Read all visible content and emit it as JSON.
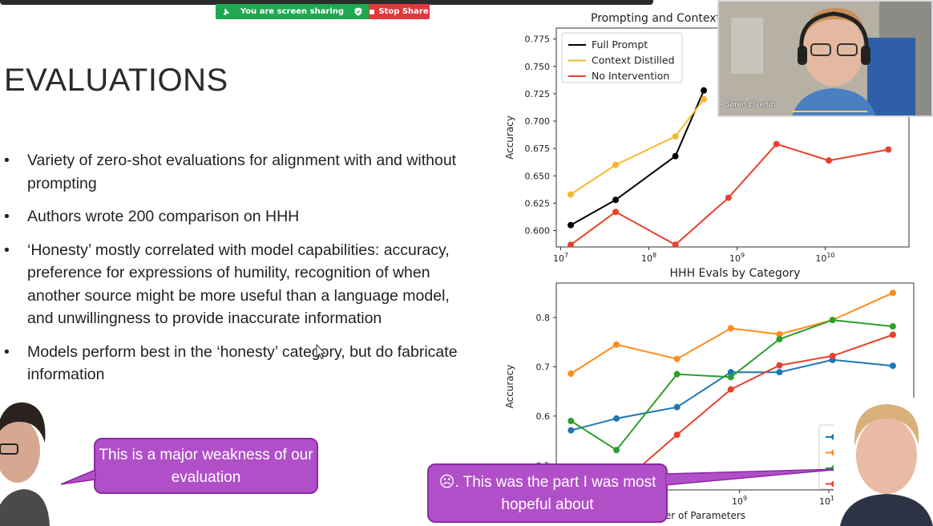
{
  "share_toolbar": {
    "status": "You are screen sharing",
    "stop_label": "Stop Share",
    "status_color": "#1fa84f",
    "stop_color": "#e0383e"
  },
  "slide": {
    "title": "EVALUATIONS",
    "bullets": [
      "Variety of zero-shot evaluations for alignment with and without prompting",
      "Authors wrote 200 comparison on HHH",
      "‘Honesty’ mostly correlated with model capabilities: accuracy, preference for expressions of humility, recognition of when another source might be more useful than a language model, and unwillingness to provide inaccurate information",
      "Models perform best in the ‘honesty’ category, but do fabricate information"
    ]
  },
  "webcam": {
    "name": "Søren Elverlin"
  },
  "speech": {
    "left": "This is a major weakness of our evaluation",
    "right": "☹. This was the part I was most hopeful about"
  },
  "chart_data": [
    {
      "type": "line",
      "title": "Prompting and Context",
      "xlabel": "",
      "ylabel": "Accuracy",
      "x_scale": "log",
      "x_ticks": [
        "10^7",
        "10^8",
        "10^9",
        "10^10"
      ],
      "ylim": [
        0.585,
        0.785
      ],
      "y_ticks": [
        "0.600",
        "0.625",
        "0.650",
        "0.675",
        "0.700",
        "0.725",
        "0.750",
        "0.775"
      ],
      "legend_position": "top-left",
      "series": [
        {
          "name": "Full Prompt",
          "color": "#000000",
          "x": [
            13000000,
            42000000,
            200000000,
            420000000
          ],
          "y": [
            0.605,
            0.628,
            0.668,
            0.728
          ]
        },
        {
          "name": "Context Distilled",
          "color": "#f5b82e",
          "x": [
            13000000,
            42000000,
            200000000,
            420000000
          ],
          "y": [
            0.633,
            0.66,
            0.686,
            0.72
          ]
        },
        {
          "name": "No Intervention",
          "color": "#e8412b",
          "x": [
            13000000,
            42000000,
            200000000,
            800000000,
            2800000000,
            11000000000,
            52000000000
          ],
          "y": [
            0.587,
            0.617,
            0.587,
            0.63,
            0.679,
            0.664,
            0.674
          ]
        }
      ]
    },
    {
      "type": "line",
      "title": "HHH Evals by Category",
      "xlabel": "Number of Parameters",
      "ylabel": "Accuracy",
      "x_scale": "log",
      "x_ticks": [
        "10^9",
        "10^10"
      ],
      "ylim": [
        0.45,
        0.87
      ],
      "y_ticks": [
        "0.5",
        "0.6",
        "0.7",
        "0.8"
      ],
      "legend_position": "bottom-right",
      "series": [
        {
          "color": "#1f77b4",
          "x": [
            13000000,
            42000000,
            200000000,
            800000000,
            2800000000,
            11000000000,
            52000000000
          ],
          "y": [
            0.571,
            0.595,
            0.618,
            0.689,
            0.689,
            0.714,
            0.702
          ]
        },
        {
          "color": "#ff8c1a",
          "x": [
            13000000,
            42000000,
            200000000,
            800000000,
            2800000000,
            11000000000,
            52000000000
          ],
          "y": [
            0.686,
            0.745,
            0.716,
            0.778,
            0.766,
            0.795,
            0.85
          ]
        },
        {
          "color": "#2ca02c",
          "x": [
            13000000,
            42000000,
            200000000,
            800000000,
            2800000000,
            11000000000,
            52000000000
          ],
          "y": [
            0.59,
            0.531,
            0.685,
            0.679,
            0.756,
            0.795,
            0.782
          ]
        },
        {
          "color": "#e8412b",
          "x": [
            13000000,
            42000000,
            200000000,
            800000000,
            2800000000,
            11000000000,
            52000000000
          ],
          "y": [
            0.482,
            0.455,
            0.562,
            0.654,
            0.703,
            0.722,
            0.765
          ]
        }
      ]
    }
  ]
}
